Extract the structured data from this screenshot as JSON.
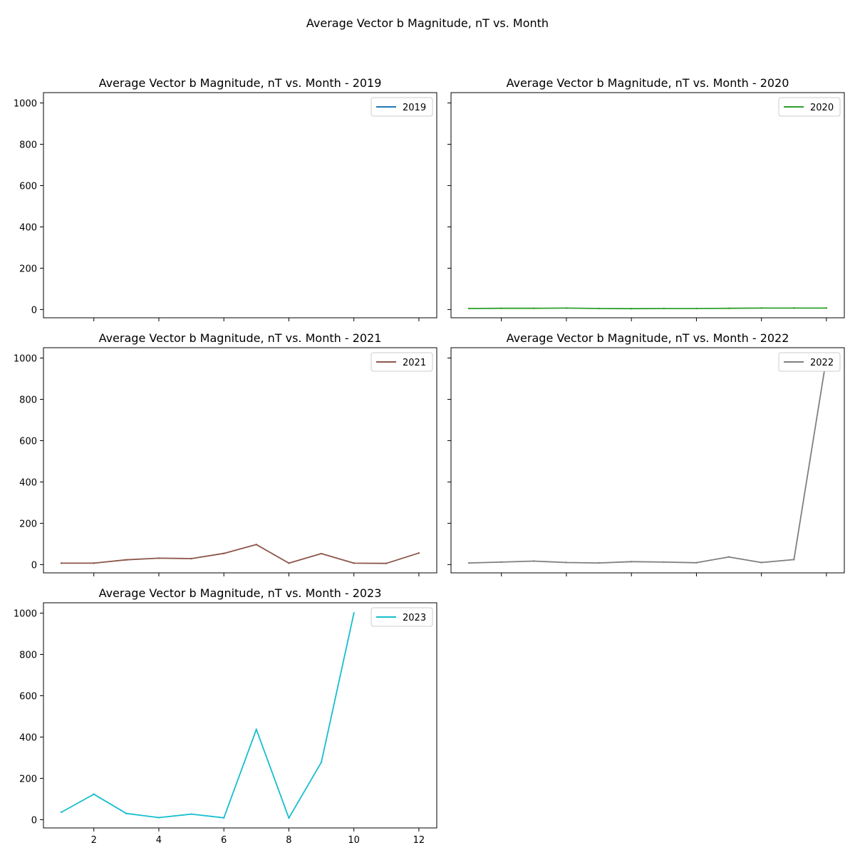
{
  "figure": {
    "suptitle": "Average Vector b Magnitude, nT vs. Month"
  },
  "chart_data": [
    {
      "type": "line",
      "title": "Average Vector b Magnitude, nT vs. Month - 2019",
      "xlabel": "",
      "ylabel": "",
      "xlim": [
        0.45,
        12.55
      ],
      "ylim": [
        -40,
        1050
      ],
      "xticks": [
        2,
        4,
        6,
        8,
        10,
        12
      ],
      "yticks": [
        0,
        200,
        400,
        600,
        800,
        1000
      ],
      "show_x_tick_labels": false,
      "show_y_tick_labels": true,
      "legend": "top-right",
      "grid": false,
      "series": [
        {
          "name": "2019",
          "color": "#1f77b4",
          "x": [],
          "y": []
        }
      ]
    },
    {
      "type": "line",
      "title": "Average Vector b Magnitude, nT vs. Month - 2020",
      "xlabel": "",
      "ylabel": "",
      "xlim": [
        0.45,
        12.55
      ],
      "ylim": [
        -40,
        1050
      ],
      "xticks": [
        2,
        4,
        6,
        8,
        10,
        12
      ],
      "yticks": [
        0,
        200,
        400,
        600,
        800,
        1000
      ],
      "show_x_tick_labels": false,
      "show_y_tick_labels": false,
      "legend": "top-right",
      "grid": false,
      "series": [
        {
          "name": "2020",
          "color": "#2ca02c",
          "x": [
            1,
            2,
            3,
            4,
            5,
            6,
            7,
            8,
            9,
            10,
            11,
            12
          ],
          "y": [
            5,
            6,
            6,
            7,
            5,
            4,
            5,
            5,
            6,
            7,
            7,
            7
          ]
        }
      ]
    },
    {
      "type": "line",
      "title": "Average Vector b Magnitude, nT vs. Month - 2021",
      "xlabel": "",
      "ylabel": "",
      "xlim": [
        0.45,
        12.55
      ],
      "ylim": [
        -40,
        1050
      ],
      "xticks": [
        2,
        4,
        6,
        8,
        10,
        12
      ],
      "yticks": [
        0,
        200,
        400,
        600,
        800,
        1000
      ],
      "show_x_tick_labels": false,
      "show_y_tick_labels": true,
      "legend": "top-right",
      "grid": false,
      "series": [
        {
          "name": "2021",
          "color": "#8c564b",
          "x": [
            1,
            2,
            3,
            4,
            5,
            6,
            7,
            8,
            9,
            10,
            11,
            12
          ],
          "y": [
            7,
            7,
            23,
            31,
            29,
            54,
            97,
            7,
            53,
            7,
            6,
            56
          ]
        }
      ]
    },
    {
      "type": "line",
      "title": "Average Vector b Magnitude, nT vs. Month - 2022",
      "xlabel": "",
      "ylabel": "",
      "xlim": [
        0.45,
        12.55
      ],
      "ylim": [
        -40,
        1050
      ],
      "xticks": [
        2,
        4,
        6,
        8,
        10,
        12
      ],
      "yticks": [
        0,
        200,
        400,
        600,
        800,
        1000
      ],
      "show_x_tick_labels": false,
      "show_y_tick_labels": false,
      "legend": "top-right",
      "grid": false,
      "series": [
        {
          "name": "2022",
          "color": "#7f7f7f",
          "x": [
            1,
            2,
            3,
            4,
            5,
            6,
            7,
            8,
            9,
            10,
            11,
            12
          ],
          "y": [
            8,
            12,
            17,
            10,
            8,
            14,
            12,
            9,
            37,
            10,
            24,
            1000
          ]
        }
      ]
    },
    {
      "type": "line",
      "title": "Average Vector b Magnitude, nT vs. Month - 2023",
      "xlabel": "",
      "ylabel": "",
      "xlim": [
        0.45,
        12.55
      ],
      "ylim": [
        -40,
        1050
      ],
      "xticks": [
        2,
        4,
        6,
        8,
        10,
        12
      ],
      "yticks": [
        0,
        200,
        400,
        600,
        800,
        1000
      ],
      "show_x_tick_labels": true,
      "show_y_tick_labels": true,
      "legend": "top-right",
      "grid": false,
      "series": [
        {
          "name": "2023",
          "color": "#17becf",
          "x": [
            1,
            2,
            3,
            4,
            5,
            6,
            7,
            8,
            9,
            10
          ],
          "y": [
            36,
            123,
            30,
            10,
            27,
            9,
            437,
            8,
            278,
            1000
          ]
        }
      ]
    }
  ]
}
